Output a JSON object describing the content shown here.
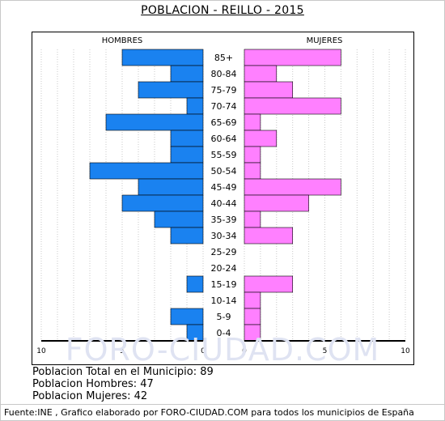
{
  "title": "POBLACION - REILLO - 2015",
  "watermark": "FORO-CIUDAD.COM",
  "summary": {
    "total": "Poblacion Total en el Municipio: 89",
    "hombres": "Poblacion Hombres: 47",
    "mujeres": "Poblacion Mujeres: 42"
  },
  "footer": "Fuente:INE , Grafico elaborado por FORO-CIUDAD.COM para todos los municipios de España",
  "colors": {
    "male_fill": "#1a82f0",
    "female_fill": "#ff80ff",
    "bar_stroke": "#000000",
    "grid": "#c8c8c8"
  },
  "chart_data": {
    "type": "bar",
    "orientation": "horizontal",
    "subtype": "population-pyramid",
    "title": "POBLACION - REILLO - 2015",
    "categories": [
      "85+",
      "80-84",
      "75-79",
      "70-74",
      "65-69",
      "60-64",
      "55-59",
      "50-54",
      "45-49",
      "40-44",
      "35-39",
      "30-34",
      "25-29",
      "20-24",
      "15-19",
      "10-14",
      "5-9",
      "0-4"
    ],
    "series": [
      {
        "name": "HOMBRES",
        "values": [
          5,
          2,
          4,
          1,
          6,
          2,
          2,
          7,
          4,
          5,
          3,
          2,
          0,
          0,
          1,
          0,
          2,
          1
        ]
      },
      {
        "name": "MUJERES",
        "values": [
          6,
          2,
          3,
          6,
          1,
          2,
          1,
          1,
          6,
          4,
          1,
          3,
          0,
          0,
          3,
          1,
          1,
          1
        ]
      }
    ],
    "xlim": [
      0,
      10
    ],
    "x_ticks_left": [
      "10",
      "5",
      "0"
    ],
    "x_ticks_right": [
      "0",
      "5",
      "10"
    ],
    "grid": true,
    "legend": "top"
  }
}
